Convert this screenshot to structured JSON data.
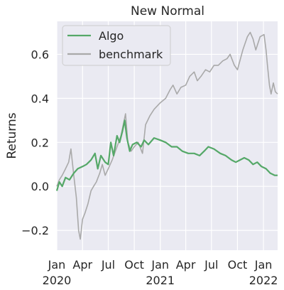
{
  "chart_data": {
    "type": "line",
    "title": "New Normal",
    "ylabel": "Returns",
    "xlabel": "",
    "grid": true,
    "legend_position": "upper-left",
    "x_range": [
      "2020-01-01",
      "2022-02-20"
    ],
    "ylim": [
      -0.29,
      0.75
    ],
    "y_ticks": [
      -0.2,
      0.0,
      0.2,
      0.4,
      0.6
    ],
    "y_tick_labels": [
      "−0.2",
      "0.0",
      "0.2",
      "0.4",
      "0.6"
    ],
    "x_ticks": [
      {
        "date": "2020-01-01",
        "label": "Jan",
        "year": "2020"
      },
      {
        "date": "2020-04-01",
        "label": "Apr",
        "year": ""
      },
      {
        "date": "2020-07-01",
        "label": "Jul",
        "year": ""
      },
      {
        "date": "2020-10-01",
        "label": "Oct",
        "year": ""
      },
      {
        "date": "2021-01-01",
        "label": "Jan",
        "year": "2021"
      },
      {
        "date": "2021-04-01",
        "label": "Apr",
        "year": ""
      },
      {
        "date": "2021-07-01",
        "label": "Jul",
        "year": ""
      },
      {
        "date": "2021-10-01",
        "label": "Oct",
        "year": ""
      },
      {
        "date": "2022-01-01",
        "label": "Jan",
        "year": "2022"
      }
    ],
    "series": [
      {
        "name": "Algo",
        "color": "#55a868",
        "points": [
          [
            "2020-01-01",
            -0.02
          ],
          [
            "2020-01-10",
            0.02
          ],
          [
            "2020-01-20",
            0.0
          ],
          [
            "2020-02-01",
            0.04
          ],
          [
            "2020-02-15",
            0.03
          ],
          [
            "2020-03-01",
            0.06
          ],
          [
            "2020-03-15",
            0.08
          ],
          [
            "2020-04-01",
            0.09
          ],
          [
            "2020-04-15",
            0.1
          ],
          [
            "2020-05-01",
            0.12
          ],
          [
            "2020-05-15",
            0.15
          ],
          [
            "2020-05-25",
            0.08
          ],
          [
            "2020-06-05",
            0.14
          ],
          [
            "2020-06-20",
            0.11
          ],
          [
            "2020-07-01",
            0.1
          ],
          [
            "2020-07-10",
            0.2
          ],
          [
            "2020-07-20",
            0.14
          ],
          [
            "2020-08-01",
            0.23
          ],
          [
            "2020-08-10",
            0.2
          ],
          [
            "2020-08-20",
            0.25
          ],
          [
            "2020-08-28",
            0.3
          ],
          [
            "2020-09-05",
            0.22
          ],
          [
            "2020-09-15",
            0.16
          ],
          [
            "2020-09-25",
            0.19
          ],
          [
            "2020-10-10",
            0.2
          ],
          [
            "2020-10-25",
            0.18
          ],
          [
            "2020-11-05",
            0.21
          ],
          [
            "2020-11-20",
            0.19
          ],
          [
            "2020-12-10",
            0.22
          ],
          [
            "2021-01-01",
            0.21
          ],
          [
            "2021-01-20",
            0.2
          ],
          [
            "2021-02-10",
            0.18
          ],
          [
            "2021-03-01",
            0.18
          ],
          [
            "2021-03-20",
            0.16
          ],
          [
            "2021-04-10",
            0.15
          ],
          [
            "2021-05-01",
            0.15
          ],
          [
            "2021-05-20",
            0.14
          ],
          [
            "2021-06-05",
            0.16
          ],
          [
            "2021-06-20",
            0.18
          ],
          [
            "2021-07-10",
            0.17
          ],
          [
            "2021-08-01",
            0.15
          ],
          [
            "2021-08-20",
            0.14
          ],
          [
            "2021-09-10",
            0.12
          ],
          [
            "2021-09-25",
            0.11
          ],
          [
            "2021-10-10",
            0.12
          ],
          [
            "2021-10-25",
            0.13
          ],
          [
            "2021-11-10",
            0.12
          ],
          [
            "2021-11-25",
            0.1
          ],
          [
            "2021-12-10",
            0.11
          ],
          [
            "2021-12-25",
            0.09
          ],
          [
            "2022-01-10",
            0.08
          ],
          [
            "2022-01-25",
            0.06
          ],
          [
            "2022-02-10",
            0.05
          ],
          [
            "2022-02-20",
            0.05
          ]
        ]
      },
      {
        "name": "benchmark",
        "color": "#a9a9a9",
        "points": [
          [
            "2020-01-01",
            0.0
          ],
          [
            "2020-01-10",
            0.03
          ],
          [
            "2020-01-20",
            0.05
          ],
          [
            "2020-02-01",
            0.08
          ],
          [
            "2020-02-12",
            0.11
          ],
          [
            "2020-02-20",
            0.17
          ],
          [
            "2020-03-01",
            0.05
          ],
          [
            "2020-03-10",
            -0.05
          ],
          [
            "2020-03-18",
            -0.2
          ],
          [
            "2020-03-24",
            -0.24
          ],
          [
            "2020-04-01",
            -0.15
          ],
          [
            "2020-04-10",
            -0.12
          ],
          [
            "2020-04-20",
            -0.08
          ],
          [
            "2020-05-01",
            -0.02
          ],
          [
            "2020-05-10",
            0.0
          ],
          [
            "2020-05-20",
            0.02
          ],
          [
            "2020-06-01",
            0.06
          ],
          [
            "2020-06-10",
            0.1
          ],
          [
            "2020-06-20",
            0.05
          ],
          [
            "2020-07-01",
            0.08
          ],
          [
            "2020-07-15",
            0.12
          ],
          [
            "2020-08-01",
            0.18
          ],
          [
            "2020-08-15",
            0.23
          ],
          [
            "2020-08-31",
            0.33
          ],
          [
            "2020-09-08",
            0.2
          ],
          [
            "2020-09-20",
            0.16
          ],
          [
            "2020-10-01",
            0.18
          ],
          [
            "2020-10-15",
            0.2
          ],
          [
            "2020-10-30",
            0.15
          ],
          [
            "2020-11-10",
            0.28
          ],
          [
            "2020-11-25",
            0.32
          ],
          [
            "2020-12-10",
            0.35
          ],
          [
            "2021-01-01",
            0.38
          ],
          [
            "2021-01-20",
            0.4
          ],
          [
            "2021-02-05",
            0.44
          ],
          [
            "2021-02-15",
            0.46
          ],
          [
            "2021-03-01",
            0.42
          ],
          [
            "2021-03-15",
            0.45
          ],
          [
            "2021-04-01",
            0.46
          ],
          [
            "2021-04-15",
            0.5
          ],
          [
            "2021-05-01",
            0.52
          ],
          [
            "2021-05-12",
            0.48
          ],
          [
            "2021-05-25",
            0.5
          ],
          [
            "2021-06-10",
            0.53
          ],
          [
            "2021-06-25",
            0.52
          ],
          [
            "2021-07-10",
            0.55
          ],
          [
            "2021-07-25",
            0.55
          ],
          [
            "2021-08-10",
            0.57
          ],
          [
            "2021-08-25",
            0.58
          ],
          [
            "2021-09-05",
            0.6
          ],
          [
            "2021-09-20",
            0.55
          ],
          [
            "2021-10-01",
            0.53
          ],
          [
            "2021-10-20",
            0.62
          ],
          [
            "2021-11-05",
            0.68
          ],
          [
            "2021-11-15",
            0.7
          ],
          [
            "2021-11-25",
            0.67
          ],
          [
            "2021-12-05",
            0.62
          ],
          [
            "2021-12-20",
            0.68
          ],
          [
            "2022-01-03",
            0.69
          ],
          [
            "2022-01-10",
            0.62
          ],
          [
            "2022-01-15",
            0.55
          ],
          [
            "2022-01-22",
            0.46
          ],
          [
            "2022-01-28",
            0.42
          ],
          [
            "2022-02-05",
            0.47
          ],
          [
            "2022-02-12",
            0.43
          ],
          [
            "2022-02-20",
            0.42
          ]
        ]
      }
    ]
  }
}
